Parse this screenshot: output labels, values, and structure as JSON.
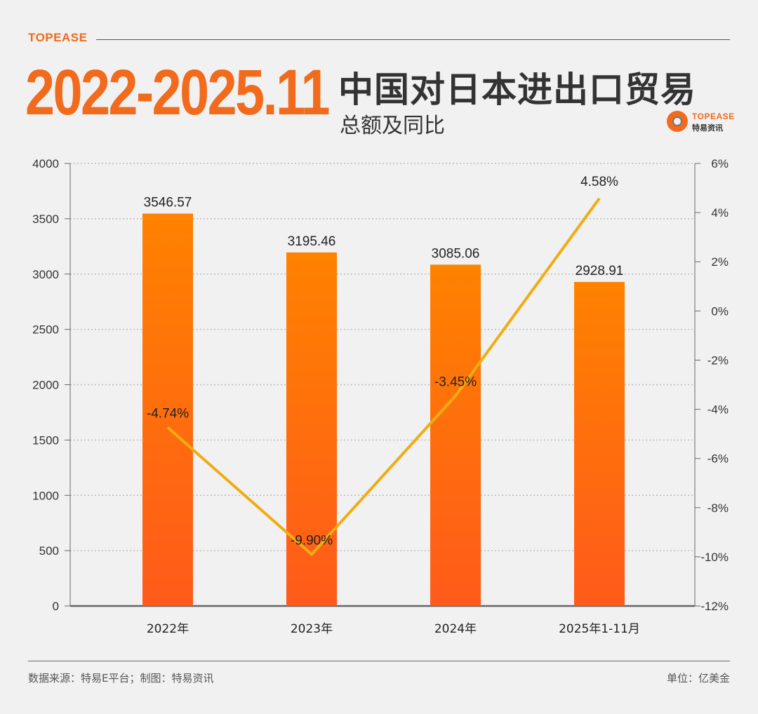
{
  "header": {
    "brand": "TOPEASE",
    "date_range": "2022-2025.11",
    "title": "中国对日本进出口贸易",
    "subtitle": "总额及同比"
  },
  "logo": {
    "text": "TOPEASE",
    "cn": "特易资讯"
  },
  "chart_data": {
    "type": "bar",
    "categories": [
      "2022年",
      "2023年",
      "2024年",
      "2025年1-11月"
    ],
    "series": [
      {
        "type": "bar",
        "values": [
          3546.57,
          3195.46,
          3085.06,
          2928.91
        ],
        "labels": [
          "3546.57",
          "3195.46",
          "3085.06",
          "2928.91"
        ],
        "axis": "left"
      },
      {
        "type": "line",
        "values": [
          -4.74,
          -9.9,
          -3.45,
          4.58
        ],
        "labels": [
          "-4.74%",
          "-9.90%",
          "-3.45%",
          "4.58%"
        ],
        "axis": "right"
      }
    ],
    "y_left": {
      "min": 0,
      "max": 4000,
      "ticks": [
        "0",
        "500",
        "1000",
        "1500",
        "2000",
        "2500",
        "3000",
        "3500",
        "4000"
      ]
    },
    "y_right": {
      "min": -12,
      "max": 6,
      "ticks": [
        "-12%",
        "-10%",
        "-8%",
        "-6%",
        "-4%",
        "-2%",
        "0%",
        "2%",
        "4%",
        "6%"
      ]
    },
    "grid": true,
    "colors": {
      "bar_top": "#ff8200",
      "bar_bottom": "#ff5a1a",
      "line": "#f0ac14",
      "axis": "#666666"
    }
  },
  "footer": {
    "source": "数据来源：特易E平台；制图：特易资讯",
    "unit": "单位：亿美金"
  }
}
